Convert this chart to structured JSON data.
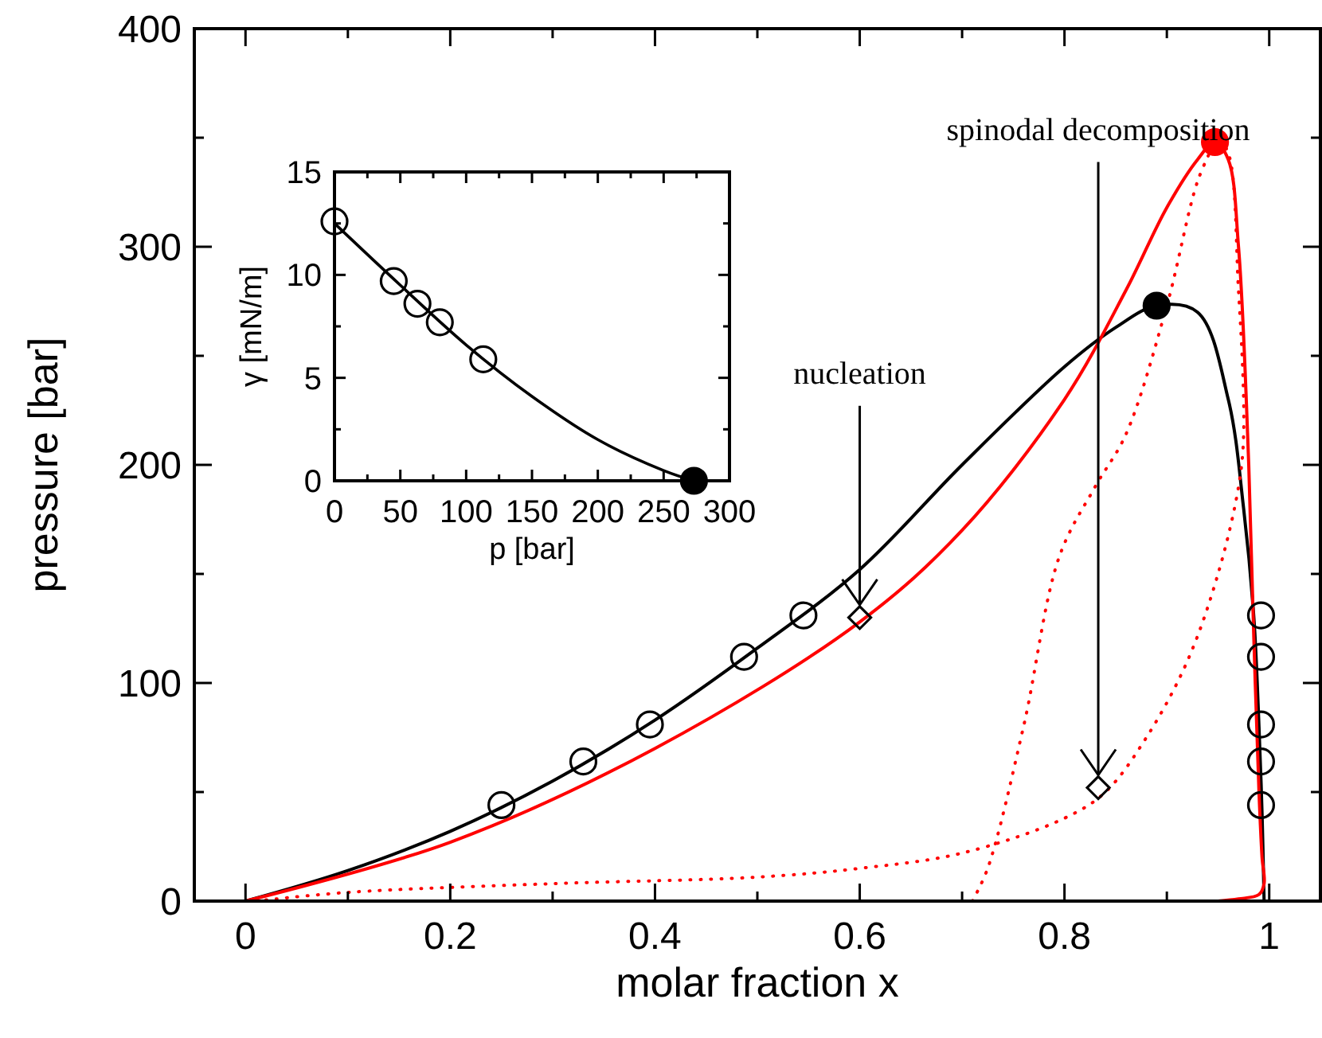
{
  "chart_data": [
    {
      "type": "line",
      "xlabel": "molar fraction x",
      "ylabel": "pressure [bar]",
      "xlim": [
        -0.05,
        1.05
      ],
      "ylim": [
        0,
        400
      ],
      "xticks": [
        0,
        {
          "value": 0.1,
          "label": null
        },
        0.2,
        {
          "value": 0.3,
          "label": null
        },
        0.4,
        {
          "value": 0.5,
          "label": null
        },
        0.6,
        {
          "value": 0.7,
          "label": null
        },
        0.8,
        {
          "value": 0.9,
          "label": null
        },
        1
      ],
      "yticks": [
        0,
        {
          "value": 50,
          "label": null
        },
        100,
        {
          "value": 150,
          "label": null
        },
        200,
        {
          "value": 250,
          "label": null
        },
        300,
        {
          "value": 350,
          "label": null
        },
        400
      ],
      "grid": false,
      "series": [
        {
          "type": "line",
          "color": "#000000",
          "line_style": "solid",
          "x": [
            0,
            0.1,
            0.2,
            0.3,
            0.4,
            0.5,
            0.6,
            0.7,
            0.8,
            0.85,
            0.89,
            0.93,
            0.96,
            0.975,
            0.985,
            0.99,
            0.993,
            0.995
          ],
          "values": [
            0,
            14,
            32,
            55,
            83,
            116,
            152,
            200,
            245,
            263,
            273,
            270,
            230,
            180,
            130,
            80,
            40,
            0
          ]
        },
        {
          "type": "line",
          "color": "#ff0000",
          "line_style": "solid",
          "x": [
            0,
            0.2,
            0.4,
            0.6,
            0.7,
            0.8,
            0.86,
            0.9,
            0.93,
            0.947,
            0.96,
            0.97,
            0.98,
            0.985,
            0.99,
            0.993,
            0.995,
            0.99,
            0.97,
            0.95
          ],
          "values": [
            0,
            27,
            70,
            128,
            170,
            230,
            280,
            318,
            340,
            348,
            340,
            300,
            200,
            120,
            50,
            20,
            8,
            3,
            1,
            0
          ]
        },
        {
          "type": "line",
          "color": "#ff0000",
          "line_style": "dotted",
          "x": [
            0.01,
            0.1,
            0.3,
            0.5,
            0.6,
            0.7,
            0.8,
            0.84,
            0.88,
            0.92,
            0.95,
            0.97,
            0.975,
            0.97,
            0.958,
            0.947
          ],
          "values": [
            0,
            4,
            8,
            11,
            15,
            22,
            38,
            50,
            75,
            110,
            150,
            190,
            214,
            280,
            345,
            348
          ]
        },
        {
          "type": "line",
          "color": "#ff0000",
          "line_style": "dotted",
          "x": [
            0.71,
            0.725,
            0.76,
            0.795,
            0.83,
            0.86,
            0.9,
            0.93,
            0.947
          ],
          "values": [
            0,
            15,
            80,
            158,
            190,
            214,
            273,
            330,
            348
          ]
        },
        {
          "type": "scatter",
          "color": "#000000",
          "marker": "circle",
          "x": [
            0.25,
            0.33,
            0.395,
            0.487,
            0.545,
            0.992,
            0.992,
            0.992,
            0.992,
            0.992
          ],
          "values": [
            44,
            64,
            81,
            112,
            131,
            131,
            112,
            81,
            64,
            44
          ]
        },
        {
          "type": "scatter",
          "color": "#000000",
          "marker": "diamond",
          "x": [
            0.6,
            0.833
          ],
          "values": [
            130,
            52
          ]
        },
        {
          "type": "scatter",
          "color": "#000000",
          "marker": "circle",
          "x": [
            0.89
          ],
          "values": [
            273
          ]
        },
        {
          "type": "scatter",
          "color": "#ff0000",
          "marker": "circle",
          "x": [
            0.947
          ],
          "values": [
            348
          ]
        }
      ],
      "annotations": [
        {
          "text": "nucleation",
          "x": 0.6,
          "y": 130
        },
        {
          "text": "spinodal decomposition",
          "x": 0.833,
          "y": 52
        }
      ]
    },
    {
      "type": "line",
      "xlabel": "p [bar]",
      "ylabel": "γ [mN/m]",
      "xlim": [
        0,
        300
      ],
      "ylim": [
        0,
        15
      ],
      "xticks": [
        0,
        {
          "value": 25,
          "label": null
        },
        50,
        {
          "value": 75,
          "label": null
        },
        100,
        {
          "value": 125,
          "label": null
        },
        150,
        {
          "value": 175,
          "label": null
        },
        200,
        {
          "value": 225,
          "label": null
        },
        250,
        {
          "value": 275,
          "label": null
        },
        300
      ],
      "yticks": [
        0,
        {
          "value": 2.5,
          "label": null
        },
        5,
        {
          "value": 7.5,
          "label": null
        },
        10,
        {
          "value": 12.5,
          "label": null
        },
        15
      ],
      "grid": false,
      "series": [
        {
          "type": "line",
          "color": "#000000",
          "line_style": "solid",
          "x": [
            0,
            50,
            100,
            150,
            200,
            250,
            273
          ],
          "values": [
            12.5,
            9.5,
            6.6,
            4.1,
            2.0,
            0.5,
            0
          ]
        },
        {
          "type": "scatter",
          "color": "#000000",
          "marker": "circle",
          "x": [
            0,
            45,
            63,
            80,
            113
          ],
          "values": [
            12.6,
            9.7,
            8.6,
            7.7,
            5.9
          ]
        },
        {
          "type": "scatter",
          "color": "#000000",
          "marker": "circle",
          "x": [
            273
          ],
          "values": [
            0
          ]
        }
      ]
    }
  ]
}
